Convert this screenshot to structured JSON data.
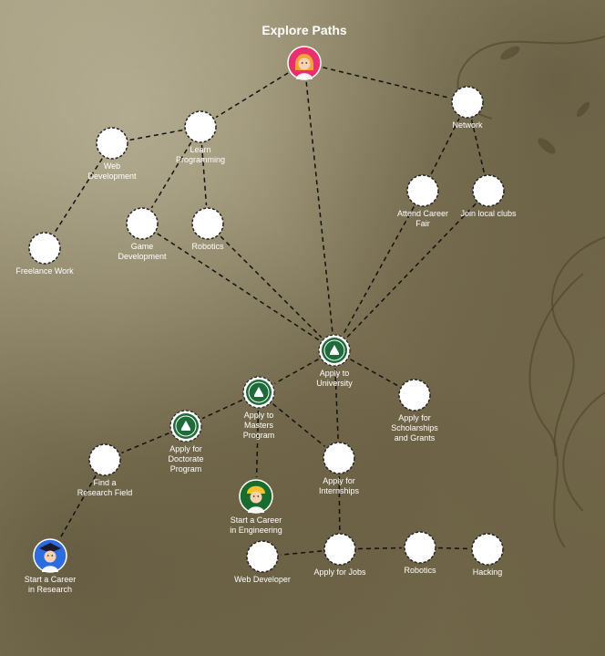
{
  "diagram": {
    "title": "Explore Paths",
    "nodes": [
      {
        "id": "root",
        "label": "",
        "kind": "avatar-girl"
      },
      {
        "id": "learn",
        "label": "Learn\nProgramming",
        "kind": "circle"
      },
      {
        "id": "webdev",
        "label": "Web\nDevelopment",
        "kind": "circle"
      },
      {
        "id": "freelance",
        "label": "Freelance Work",
        "kind": "circle"
      },
      {
        "id": "gamedev",
        "label": "Game\nDevelopment",
        "kind": "circle"
      },
      {
        "id": "robotics1",
        "label": "Robotics",
        "kind": "circle"
      },
      {
        "id": "network",
        "label": "Network",
        "kind": "circle"
      },
      {
        "id": "career_fair",
        "label": "Attend Career\nFair",
        "kind": "circle"
      },
      {
        "id": "clubs",
        "label": "Join local clubs",
        "kind": "circle"
      },
      {
        "id": "university",
        "label": "Apply to\nUniversity",
        "kind": "seal"
      },
      {
        "id": "scholarships",
        "label": "Apply for\nScholarships\nand Grants",
        "kind": "circle"
      },
      {
        "id": "masters",
        "label": "Apply to\nMasters\nProgram",
        "kind": "seal"
      },
      {
        "id": "doctorate",
        "label": "Apply for\nDoctorate\nProgram",
        "kind": "seal"
      },
      {
        "id": "research_field",
        "label": "Find a\nResearch Field",
        "kind": "circle"
      },
      {
        "id": "career_research",
        "label": "Start a Career\nin Research",
        "kind": "avatar-grad"
      },
      {
        "id": "career_eng",
        "label": "Start a Career\nin Engineering",
        "kind": "avatar-eng"
      },
      {
        "id": "internships",
        "label": "Apply for\nInternships",
        "kind": "circle"
      },
      {
        "id": "web_developer",
        "label": "Web Developer",
        "kind": "circle"
      },
      {
        "id": "jobs",
        "label": "Apply for Jobs",
        "kind": "circle"
      },
      {
        "id": "robotics2",
        "label": "Robotics",
        "kind": "circle"
      },
      {
        "id": "hacking",
        "label": "Hacking",
        "kind": "circle"
      }
    ],
    "edges": [
      [
        "root",
        "learn"
      ],
      [
        "root",
        "network"
      ],
      [
        "root",
        "university"
      ],
      [
        "learn",
        "webdev"
      ],
      [
        "learn",
        "gamedev"
      ],
      [
        "learn",
        "robotics1"
      ],
      [
        "webdev",
        "freelance"
      ],
      [
        "network",
        "career_fair"
      ],
      [
        "network",
        "clubs"
      ],
      [
        "gamedev",
        "university"
      ],
      [
        "robotics1",
        "university"
      ],
      [
        "career_fair",
        "university"
      ],
      [
        "clubs",
        "university"
      ],
      [
        "university",
        "masters"
      ],
      [
        "university",
        "scholarships"
      ],
      [
        "university",
        "internships"
      ],
      [
        "masters",
        "doctorate"
      ],
      [
        "masters",
        "career_eng"
      ],
      [
        "masters",
        "internships"
      ],
      [
        "doctorate",
        "research_field"
      ],
      [
        "research_field",
        "career_research"
      ],
      [
        "internships",
        "jobs"
      ],
      [
        "jobs",
        "web_developer"
      ],
      [
        "jobs",
        "robotics2"
      ],
      [
        "robotics2",
        "hacking"
      ]
    ]
  },
  "colors": {
    "seal": "#1f6b3a",
    "avatar_girl": "#e8306f",
    "avatar_grad": "#2d6cdf",
    "avatar_eng": "#1a6b2e"
  }
}
